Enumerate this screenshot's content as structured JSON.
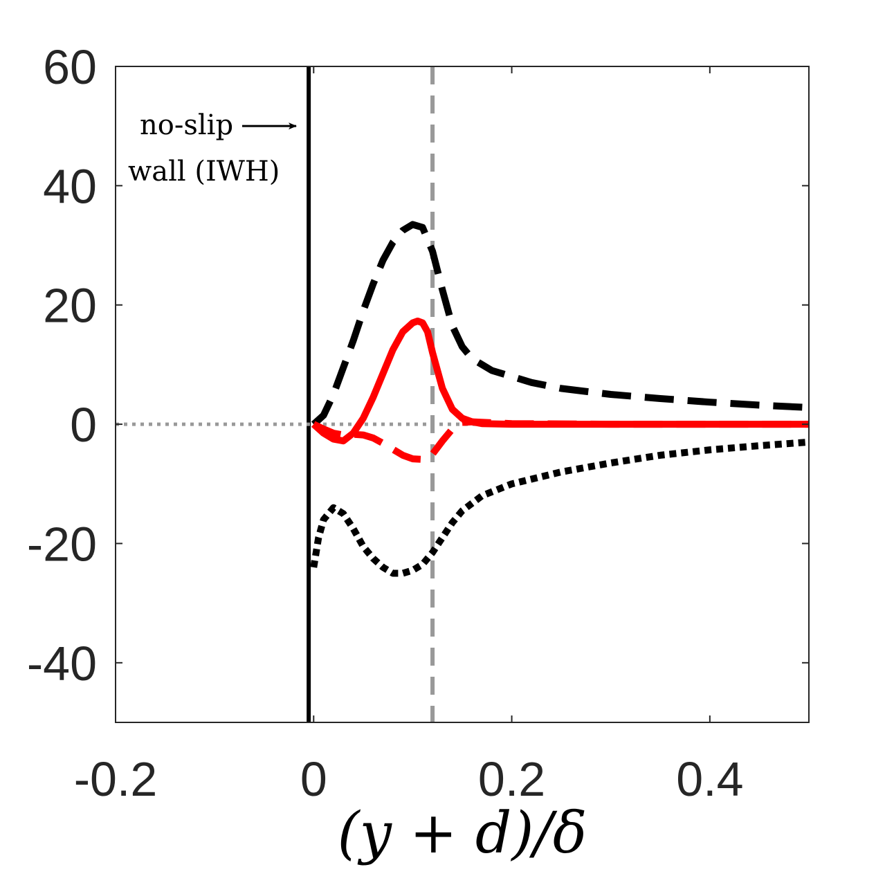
{
  "chart_data": {
    "type": "line",
    "title": "",
    "xlabel": "(y + d)/δ",
    "ylabel": "",
    "xlim": [
      -0.2,
      0.5
    ],
    "ylim": [
      -50,
      60
    ],
    "xticks": [
      -0.2,
      0,
      0.2,
      0.4
    ],
    "xtick_labels": [
      "-0.2",
      "0",
      "0.2",
      "0.4"
    ],
    "yticks": [
      -40,
      -20,
      0,
      20,
      40,
      60
    ],
    "ytick_labels": [
      "-40",
      "-20",
      "0",
      "20",
      "40",
      "60"
    ],
    "grid": false,
    "annotation": {
      "line1": "no-slip",
      "line2": "wall (IWH)",
      "arrow_x": -0.19,
      "arrow_y": 50
    },
    "reference_lines": [
      {
        "name": "wall",
        "orientation": "vertical",
        "x": -0.005,
        "color": "#000000",
        "style": "solid"
      },
      {
        "name": "peak-location",
        "orientation": "vertical",
        "x": 0.12,
        "color": "#999999",
        "style": "dashed"
      },
      {
        "name": "zero-line",
        "orientation": "horizontal",
        "y": 0,
        "color": "#999999",
        "style": "dotted"
      }
    ],
    "series": [
      {
        "name": "black-dashed",
        "color": "#000000",
        "style": "dashed",
        "x": [
          0,
          0.01,
          0.02,
          0.03,
          0.04,
          0.05,
          0.06,
          0.07,
          0.08,
          0.09,
          0.1,
          0.11,
          0.12,
          0.13,
          0.14,
          0.15,
          0.16,
          0.18,
          0.2,
          0.22,
          0.25,
          0.3,
          0.35,
          0.4,
          0.45,
          0.5
        ],
        "values": [
          0,
          1.5,
          5,
          9.5,
          14,
          19,
          23.5,
          27.5,
          30.5,
          32.5,
          33.5,
          33,
          29,
          22.5,
          16.5,
          13,
          11,
          9,
          8,
          7,
          6,
          5,
          4.3,
          3.7,
          3.2,
          2.8
        ]
      },
      {
        "name": "black-dotted",
        "color": "#000000",
        "style": "dotted",
        "x": [
          0,
          0.005,
          0.01,
          0.02,
          0.03,
          0.04,
          0.05,
          0.06,
          0.07,
          0.08,
          0.09,
          0.1,
          0.11,
          0.12,
          0.13,
          0.14,
          0.15,
          0.17,
          0.2,
          0.25,
          0.3,
          0.35,
          0.4,
          0.45,
          0.5
        ],
        "values": [
          -24,
          -19,
          -16,
          -14,
          -15,
          -17.5,
          -20.5,
          -22.5,
          -24,
          -25,
          -25,
          -24.5,
          -23.5,
          -21.5,
          -19,
          -16.5,
          -14.5,
          -12,
          -10,
          -8,
          -6.5,
          -5.2,
          -4.3,
          -3.6,
          -3
        ]
      },
      {
        "name": "red-solid",
        "color": "#ff0000",
        "style": "solid",
        "x": [
          0,
          0.01,
          0.02,
          0.03,
          0.04,
          0.05,
          0.06,
          0.07,
          0.08,
          0.09,
          0.1,
          0.105,
          0.11,
          0.115,
          0.12,
          0.13,
          0.14,
          0.15,
          0.16,
          0.17,
          0.2,
          0.3,
          0.4,
          0.5
        ],
        "values": [
          0,
          -1.5,
          -2.5,
          -2.8,
          -1.5,
          1,
          4.5,
          8.5,
          12.5,
          15.5,
          17,
          17.3,
          17,
          15.5,
          12,
          6,
          2.5,
          1,
          0.4,
          0.1,
          0,
          0,
          0,
          0
        ]
      },
      {
        "name": "red-dashed",
        "color": "#ff0000",
        "style": "dashed",
        "x": [
          0,
          0.01,
          0.02,
          0.03,
          0.04,
          0.05,
          0.06,
          0.07,
          0.08,
          0.09,
          0.1,
          0.11,
          0.12,
          0.13,
          0.14,
          0.15,
          0.16,
          0.2,
          0.3,
          0.4,
          0.5
        ],
        "values": [
          0,
          -0.8,
          -1.5,
          -1.8,
          -1.7,
          -1.8,
          -2.3,
          -3.2,
          -4.2,
          -5.2,
          -5.8,
          -5.9,
          -5,
          -2.8,
          -0.8,
          0.3,
          0.4,
          0.1,
          0,
          0,
          0
        ]
      }
    ]
  }
}
